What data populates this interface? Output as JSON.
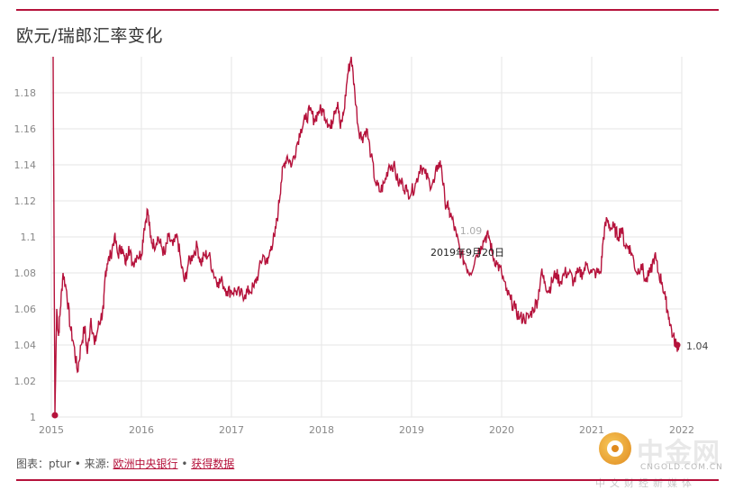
{
  "header": {
    "title": "欧元/瑞郎汇率变化"
  },
  "footer": {
    "prefix": "图表：",
    "author": "ptur",
    "sep1": " • ",
    "source_label": "来源:",
    "source_link": "欧洲中央银行",
    "sep2": " • ",
    "data_link": "获得数据"
  },
  "watermark": {
    "name": "中金网",
    "site": "CNGOLD.COM.CN",
    "slogan": "中文财经新媒体"
  },
  "colors": {
    "series": "#b5123b",
    "grid": "#e6e6e6",
    "axis_text": "#888888",
    "accent": "#b5123b"
  },
  "chart_data": {
    "type": "line",
    "title": "欧元/瑞郎汇率变化",
    "xlabel": "",
    "ylabel": "",
    "xlim": [
      2015.0,
      2022.0
    ],
    "ylim": [
      1.0,
      1.2
    ],
    "x_ticks": [
      "2015",
      "2016",
      "2017",
      "2018",
      "2019",
      "2020",
      "2021",
      "2022"
    ],
    "y_ticks": [
      "1",
      "1.02",
      "1.04",
      "1.06",
      "1.08",
      "1.1",
      "1.12",
      "1.14",
      "1.16",
      "1.18"
    ],
    "grid": true,
    "annotations": [
      {
        "label": "2019年9月20日",
        "value_label": "1.09"
      },
      {
        "label": "1.04"
      }
    ],
    "series": [
      {
        "color": "#b5123b",
        "points": [
          [
            2015.02,
            1.2
          ],
          [
            2015.04,
            1.001
          ],
          [
            2015.06,
            1.06
          ],
          [
            2015.08,
            1.045
          ],
          [
            2015.1,
            1.06
          ],
          [
            2015.13,
            1.08
          ],
          [
            2015.17,
            1.07
          ],
          [
            2015.21,
            1.05
          ],
          [
            2015.25,
            1.04
          ],
          [
            2015.29,
            1.025
          ],
          [
            2015.33,
            1.04
          ],
          [
            2015.37,
            1.05
          ],
          [
            2015.4,
            1.035
          ],
          [
            2015.44,
            1.055
          ],
          [
            2015.48,
            1.04
          ],
          [
            2015.52,
            1.05
          ],
          [
            2015.55,
            1.055
          ],
          [
            2015.58,
            1.06
          ],
          [
            2015.6,
            1.08
          ],
          [
            2015.62,
            1.085
          ],
          [
            2015.66,
            1.09
          ],
          [
            2015.7,
            1.1
          ],
          [
            2015.74,
            1.09
          ],
          [
            2015.78,
            1.095
          ],
          [
            2015.82,
            1.085
          ],
          [
            2015.86,
            1.095
          ],
          [
            2015.9,
            1.085
          ],
          [
            2015.95,
            1.09
          ],
          [
            2016.0,
            1.09
          ],
          [
            2016.03,
            1.105
          ],
          [
            2016.07,
            1.115
          ],
          [
            2016.1,
            1.1
          ],
          [
            2016.14,
            1.095
          ],
          [
            2016.18,
            1.1
          ],
          [
            2016.22,
            1.095
          ],
          [
            2016.26,
            1.09
          ],
          [
            2016.3,
            1.1
          ],
          [
            2016.35,
            1.095
          ],
          [
            2016.4,
            1.1
          ],
          [
            2016.44,
            1.085
          ],
          [
            2016.48,
            1.075
          ],
          [
            2016.52,
            1.085
          ],
          [
            2016.57,
            1.09
          ],
          [
            2016.62,
            1.095
          ],
          [
            2016.66,
            1.085
          ],
          [
            2016.7,
            1.09
          ],
          [
            2016.75,
            1.09
          ],
          [
            2016.8,
            1.08
          ],
          [
            2016.85,
            1.075
          ],
          [
            2016.9,
            1.075
          ],
          [
            2016.95,
            1.07
          ],
          [
            2017.0,
            1.07
          ],
          [
            2017.05,
            1.07
          ],
          [
            2017.1,
            1.068
          ],
          [
            2017.15,
            1.068
          ],
          [
            2017.2,
            1.07
          ],
          [
            2017.25,
            1.072
          ],
          [
            2017.3,
            1.08
          ],
          [
            2017.35,
            1.09
          ],
          [
            2017.4,
            1.085
          ],
          [
            2017.44,
            1.095
          ],
          [
            2017.48,
            1.1
          ],
          [
            2017.52,
            1.115
          ],
          [
            2017.55,
            1.13
          ],
          [
            2017.58,
            1.14
          ],
          [
            2017.62,
            1.145
          ],
          [
            2017.67,
            1.14
          ],
          [
            2017.72,
            1.15
          ],
          [
            2017.77,
            1.16
          ],
          [
            2017.82,
            1.165
          ],
          [
            2017.87,
            1.17
          ],
          [
            2017.92,
            1.165
          ],
          [
            2017.97,
            1.17
          ],
          [
            2018.02,
            1.17
          ],
          [
            2018.06,
            1.165
          ],
          [
            2018.1,
            1.16
          ],
          [
            2018.14,
            1.17
          ],
          [
            2018.18,
            1.175
          ],
          [
            2018.21,
            1.16
          ],
          [
            2018.25,
            1.17
          ],
          [
            2018.29,
            1.19
          ],
          [
            2018.33,
            1.2
          ],
          [
            2018.37,
            1.18
          ],
          [
            2018.41,
            1.16
          ],
          [
            2018.45,
            1.155
          ],
          [
            2018.5,
            1.16
          ],
          [
            2018.55,
            1.145
          ],
          [
            2018.6,
            1.13
          ],
          [
            2018.65,
            1.125
          ],
          [
            2018.7,
            1.13
          ],
          [
            2018.75,
            1.14
          ],
          [
            2018.8,
            1.14
          ],
          [
            2018.85,
            1.13
          ],
          [
            2018.9,
            1.13
          ],
          [
            2018.95,
            1.125
          ],
          [
            2019.0,
            1.125
          ],
          [
            2019.05,
            1.13
          ],
          [
            2019.1,
            1.14
          ],
          [
            2019.15,
            1.135
          ],
          [
            2019.2,
            1.13
          ],
          [
            2019.25,
            1.13
          ],
          [
            2019.29,
            1.14
          ],
          [
            2019.33,
            1.14
          ],
          [
            2019.37,
            1.12
          ],
          [
            2019.41,
            1.115
          ],
          [
            2019.45,
            1.11
          ],
          [
            2019.5,
            1.1
          ],
          [
            2019.55,
            1.09
          ],
          [
            2019.6,
            1.085
          ],
          [
            2019.65,
            1.08
          ],
          [
            2019.72,
            1.09
          ],
          [
            2019.77,
            1.095
          ],
          [
            2019.82,
            1.1
          ],
          [
            2019.86,
            1.1
          ],
          [
            2019.9,
            1.09
          ],
          [
            2019.95,
            1.085
          ],
          [
            2020.0,
            1.08
          ],
          [
            2020.05,
            1.07
          ],
          [
            2020.1,
            1.065
          ],
          [
            2020.15,
            1.06
          ],
          [
            2020.2,
            1.055
          ],
          [
            2020.25,
            1.055
          ],
          [
            2020.3,
            1.055
          ],
          [
            2020.35,
            1.06
          ],
          [
            2020.4,
            1.065
          ],
          [
            2020.44,
            1.08
          ],
          [
            2020.48,
            1.075
          ],
          [
            2020.52,
            1.07
          ],
          [
            2020.56,
            1.075
          ],
          [
            2020.6,
            1.08
          ],
          [
            2020.65,
            1.075
          ],
          [
            2020.7,
            1.08
          ],
          [
            2020.75,
            1.08
          ],
          [
            2020.8,
            1.075
          ],
          [
            2020.85,
            1.08
          ],
          [
            2020.9,
            1.08
          ],
          [
            2020.95,
            1.085
          ],
          [
            2021.0,
            1.08
          ],
          [
            2021.05,
            1.08
          ],
          [
            2021.1,
            1.08
          ],
          [
            2021.13,
            1.1
          ],
          [
            2021.17,
            1.11
          ],
          [
            2021.21,
            1.105
          ],
          [
            2021.25,
            1.105
          ],
          [
            2021.29,
            1.1
          ],
          [
            2021.33,
            1.105
          ],
          [
            2021.37,
            1.095
          ],
          [
            2021.41,
            1.095
          ],
          [
            2021.45,
            1.09
          ],
          [
            2021.5,
            1.08
          ],
          [
            2021.55,
            1.085
          ],
          [
            2021.6,
            1.075
          ],
          [
            2021.65,
            1.08
          ],
          [
            2021.7,
            1.09
          ],
          [
            2021.74,
            1.08
          ],
          [
            2021.78,
            1.075
          ],
          [
            2021.82,
            1.065
          ],
          [
            2021.86,
            1.055
          ],
          [
            2021.9,
            1.045
          ],
          [
            2021.94,
            1.04
          ],
          [
            2021.97,
            1.04
          ]
        ]
      }
    ]
  }
}
